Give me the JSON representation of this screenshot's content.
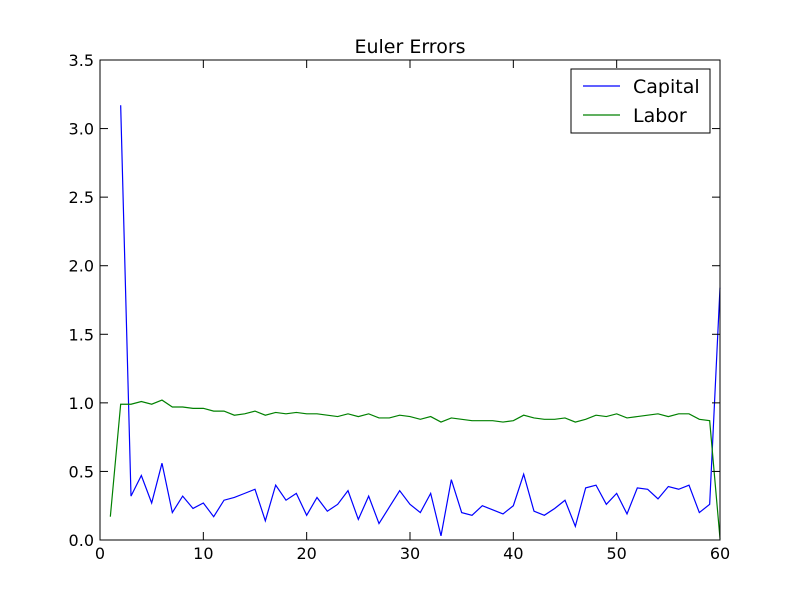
{
  "chart_data": {
    "type": "line",
    "title": "Euler Errors",
    "xlabel": "",
    "ylabel": "",
    "xlim": [
      0,
      60
    ],
    "ylim": [
      0,
      3.5
    ],
    "xticks": [
      0,
      10,
      20,
      30,
      40,
      50,
      60
    ],
    "yticks": [
      0.0,
      0.5,
      1.0,
      1.5,
      2.0,
      2.5,
      3.0,
      3.5
    ],
    "xtick_labels": [
      "0",
      "10",
      "20",
      "30",
      "40",
      "50",
      "60"
    ],
    "ytick_labels": [
      "0.0",
      "0.5",
      "1.0",
      "1.5",
      "2.0",
      "2.5",
      "3.0",
      "3.5"
    ],
    "grid": false,
    "legend": "top-right",
    "series": [
      {
        "name": "Capital",
        "color": "#0000ff",
        "x": [
          2,
          3,
          4,
          5,
          6,
          7,
          8,
          9,
          10,
          11,
          12,
          13,
          14,
          15,
          16,
          17,
          18,
          19,
          20,
          21,
          22,
          23,
          24,
          25,
          26,
          27,
          28,
          29,
          30,
          31,
          32,
          33,
          34,
          35,
          36,
          37,
          38,
          39,
          40,
          41,
          42,
          43,
          44,
          45,
          46,
          47,
          48,
          49,
          50,
          51,
          52,
          53,
          54,
          55,
          56,
          57,
          58,
          59,
          60
        ],
        "y": [
          3.17,
          0.32,
          0.47,
          0.27,
          0.56,
          0.2,
          0.32,
          0.23,
          0.27,
          0.17,
          0.29,
          0.31,
          0.34,
          0.37,
          0.14,
          0.4,
          0.29,
          0.34,
          0.18,
          0.31,
          0.21,
          0.26,
          0.36,
          0.15,
          0.32,
          0.12,
          0.24,
          0.36,
          0.26,
          0.2,
          0.34,
          0.03,
          0.44,
          0.2,
          0.18,
          0.25,
          0.22,
          0.19,
          0.25,
          0.48,
          0.21,
          0.18,
          0.23,
          0.29,
          0.1,
          0.38,
          0.4,
          0.26,
          0.34,
          0.19,
          0.38,
          0.37,
          0.3,
          0.39,
          0.37,
          0.4,
          0.2,
          0.26,
          1.84
        ]
      },
      {
        "name": "Labor",
        "color": "#008000",
        "x": [
          1,
          2,
          3,
          4,
          5,
          6,
          7,
          8,
          9,
          10,
          11,
          12,
          13,
          14,
          15,
          16,
          17,
          18,
          19,
          20,
          21,
          22,
          23,
          24,
          25,
          26,
          27,
          28,
          29,
          30,
          31,
          32,
          33,
          34,
          35,
          36,
          37,
          38,
          39,
          40,
          41,
          42,
          43,
          44,
          45,
          46,
          47,
          48,
          49,
          50,
          51,
          52,
          53,
          54,
          55,
          56,
          57,
          58,
          59,
          60
        ],
        "y": [
          0.17,
          0.99,
          0.99,
          1.01,
          0.99,
          1.02,
          0.97,
          0.97,
          0.96,
          0.96,
          0.94,
          0.94,
          0.91,
          0.92,
          0.94,
          0.91,
          0.93,
          0.92,
          0.93,
          0.92,
          0.92,
          0.91,
          0.9,
          0.92,
          0.9,
          0.92,
          0.89,
          0.89,
          0.91,
          0.9,
          0.88,
          0.9,
          0.86,
          0.89,
          0.88,
          0.87,
          0.87,
          0.87,
          0.86,
          0.87,
          0.91,
          0.89,
          0.88,
          0.88,
          0.89,
          0.86,
          0.88,
          0.91,
          0.9,
          0.92,
          0.89,
          0.9,
          0.91,
          0.92,
          0.9,
          0.92,
          0.92,
          0.88,
          0.87,
          0.01
        ]
      }
    ]
  }
}
